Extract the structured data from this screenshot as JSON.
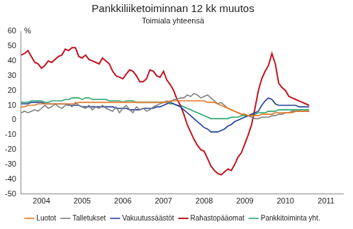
{
  "chart_data": {
    "type": "line",
    "title": "Pankkiliiketoiminnan 12 kk muutos",
    "subtitle": "Toimiala yhteensä",
    "ylabel": "%",
    "categories": [
      null,
      null,
      null,
      null,
      null,
      null,
      "2004",
      null,
      null,
      null,
      null,
      null,
      null,
      null,
      null,
      null,
      null,
      null,
      "2005",
      null,
      null,
      null,
      null,
      null,
      null,
      null,
      null,
      null,
      null,
      null,
      "2006",
      null,
      null,
      null,
      null,
      null,
      null,
      null,
      null,
      null,
      null,
      null,
      "2007",
      null,
      null,
      null,
      null,
      null,
      null,
      null,
      null,
      null,
      null,
      null,
      "2008",
      null,
      null,
      null,
      null,
      null,
      null,
      null,
      null,
      null,
      null,
      null,
      "2009",
      null,
      null,
      null,
      null,
      null,
      null,
      null,
      null,
      null,
      null,
      null,
      "2010",
      null,
      null,
      null,
      null,
      null,
      null,
      null,
      null,
      null,
      null,
      null,
      "2011",
      null,
      null,
      null,
      null,
      null
    ],
    "series": [
      {
        "name": "Luotot",
        "color": "#e87722",
        "values": [
          9,
          9,
          10,
          10,
          10,
          11,
          11,
          11,
          11,
          11,
          11,
          11,
          11,
          11,
          11,
          11,
          11,
          12,
          12,
          12,
          12,
          12,
          12,
          12,
          12,
          12,
          12,
          12,
          12,
          12,
          12,
          12,
          12,
          12,
          12,
          12,
          12,
          12,
          12,
          12,
          12,
          12,
          12,
          12,
          13,
          13,
          13,
          13,
          13,
          13,
          13,
          13,
          13,
          13,
          13,
          12,
          12,
          12,
          11,
          10,
          9,
          8,
          7,
          6,
          5,
          4,
          4,
          3,
          3,
          3,
          3,
          4,
          4,
          4,
          4,
          5,
          5,
          5,
          5,
          5,
          5,
          6,
          6,
          6,
          6,
          6,
          null,
          null,
          null,
          null,
          null,
          null,
          null,
          null,
          null,
          null
        ]
      },
      {
        "name": "Talletukset",
        "color": "#808080",
        "values": [
          5,
          6,
          5,
          6,
          7,
          6,
          8,
          10,
          8,
          9,
          11,
          9,
          8,
          10,
          11,
          9,
          12,
          10,
          9,
          8,
          10,
          7,
          9,
          8,
          10,
          8,
          7,
          6,
          9,
          5,
          8,
          10,
          7,
          5,
          9,
          7,
          8,
          6,
          7,
          9,
          10,
          11,
          12,
          13,
          12,
          14,
          14,
          15,
          15,
          17,
          16,
          18,
          17,
          15,
          16,
          17,
          15,
          13,
          11,
          12,
          10,
          8,
          7,
          6,
          5,
          4,
          4,
          3,
          2,
          1,
          1,
          2,
          2,
          2,
          3,
          3,
          4,
          4,
          5,
          5,
          6,
          6,
          6,
          6,
          6,
          6,
          null,
          null,
          null,
          null,
          null,
          null,
          null,
          null,
          null,
          null
        ]
      },
      {
        "name": "Vakuutussäästöt",
        "color": "#1f3f99",
        "values": [
          11,
          11,
          11,
          12,
          12,
          12,
          12,
          11,
          11,
          11,
          11,
          11,
          11,
          11,
          10,
          10,
          10,
          10,
          9,
          9,
          9,
          9,
          9,
          9,
          9,
          9,
          9,
          9,
          8,
          8,
          8,
          8,
          7,
          7,
          7,
          7,
          8,
          8,
          8,
          8,
          9,
          9,
          10,
          11,
          12,
          11,
          10,
          9,
          7,
          5,
          3,
          1,
          -1,
          -3,
          -5,
          -6,
          -8,
          -8,
          -8,
          -7,
          -6,
          -4,
          -3,
          -1,
          0,
          1,
          2,
          3,
          4,
          5,
          6,
          10,
          13,
          15,
          14,
          11,
          10,
          10,
          10,
          10,
          10,
          10,
          9,
          9,
          9,
          9,
          null,
          null,
          null,
          null,
          null,
          null,
          null,
          null,
          null,
          null
        ]
      },
      {
        "name": "Rahastopääomat",
        "color": "#c0141e",
        "values": [
          44,
          45,
          47,
          43,
          39,
          38,
          35,
          37,
          40,
          39,
          41,
          43,
          44,
          48,
          47,
          49,
          49,
          43,
          42,
          44,
          41,
          40,
          39,
          38,
          42,
          40,
          38,
          33,
          30,
          29,
          28,
          31,
          34,
          33,
          30,
          26,
          26,
          28,
          34,
          33,
          30,
          29,
          33,
          27,
          24,
          20,
          14,
          10,
          4,
          -3,
          -8,
          -13,
          -17,
          -20,
          -21,
          -26,
          -31,
          -34,
          -36,
          -37,
          -35,
          -33,
          -34,
          -30,
          -25,
          -22,
          -16,
          -10,
          -3,
          8,
          20,
          28,
          33,
          37,
          45,
          38,
          25,
          22,
          20,
          16,
          15,
          14,
          13,
          12,
          11,
          10,
          null,
          null,
          null,
          null,
          null,
          null,
          null,
          null,
          null,
          null
        ]
      },
      {
        "name": "Pankkitoiminta yht.",
        "color": "#2ca56d",
        "values": [
          12,
          12,
          12,
          13,
          13,
          13,
          13,
          12,
          12,
          13,
          13,
          13,
          13,
          14,
          14,
          15,
          15,
          15,
          14,
          15,
          15,
          14,
          14,
          14,
          14,
          14,
          13,
          13,
          13,
          13,
          12,
          13,
          13,
          13,
          12,
          12,
          12,
          12,
          12,
          12,
          12,
          12,
          12,
          12,
          11,
          11,
          10,
          10,
          9,
          8,
          7,
          6,
          5,
          4,
          3,
          2,
          1,
          1,
          1,
          1,
          1,
          1,
          2,
          2,
          2,
          3,
          3,
          3,
          4,
          4,
          5,
          5,
          5,
          6,
          6,
          6,
          7,
          7,
          7,
          7,
          7,
          7,
          7,
          7,
          7,
          7,
          null,
          null,
          null,
          null,
          null,
          null,
          null,
          null,
          null,
          null
        ]
      }
    ],
    "ylim": [
      -50,
      60
    ],
    "yticks": [
      -50,
      -40,
      -30,
      -20,
      -10,
      0,
      10,
      20,
      30,
      40,
      50,
      60
    ],
    "grid": false,
    "legend": "bottom"
  }
}
